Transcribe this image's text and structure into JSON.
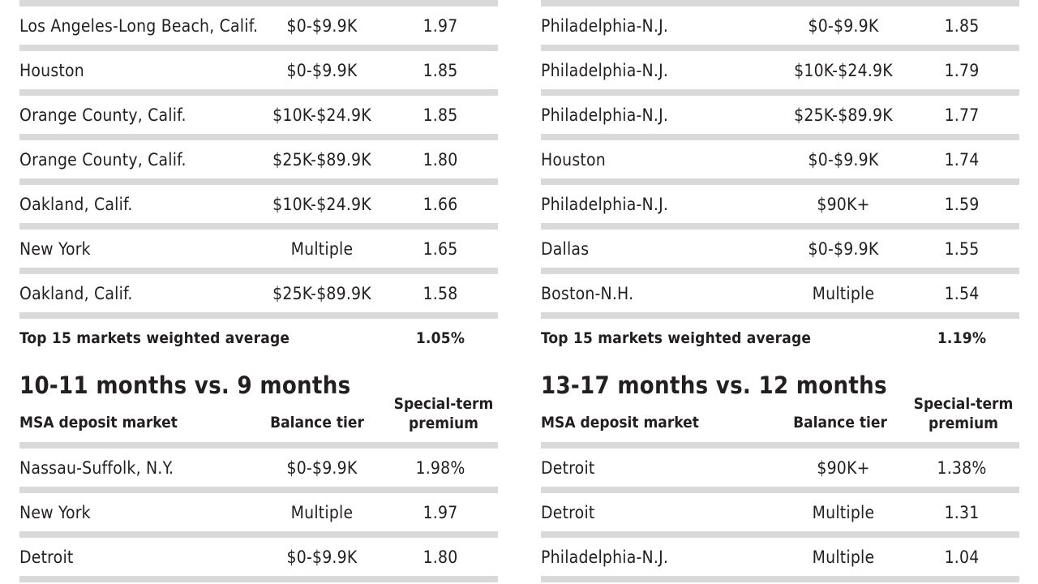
{
  "left": {
    "rows": [
      {
        "market": "Los Angeles-Long Beach, Calif.",
        "tier": "$0-$9.9K",
        "premium": "1.97"
      },
      {
        "market": "Houston",
        "tier": "$0-$9.9K",
        "premium": "1.85"
      },
      {
        "market": "Orange County, Calif.",
        "tier": "$10K-$24.9K",
        "premium": "1.85"
      },
      {
        "market": "Orange County, Calif.",
        "tier": "$25K-$89.9K",
        "premium": "1.80"
      },
      {
        "market": "Oakland, Calif.",
        "tier": "$10K-$24.9K",
        "premium": "1.66"
      },
      {
        "market": "New York",
        "tier": "Multiple",
        "premium": "1.65"
      },
      {
        "market": "Oakland, Calif.",
        "tier": "$25K-$89.9K",
        "premium": "1.58"
      }
    ],
    "average_label": "Top 15 markets weighted average",
    "average_value": "1.05%",
    "section_title": "10-11 months vs. 9 months",
    "headers": {
      "market": "MSA deposit market",
      "tier": "Balance tier",
      "premium_line1": "Special-term",
      "premium_line2": "premium"
    },
    "rows2": [
      {
        "market": "Nassau-Suffolk, N.Y.",
        "tier": "$0-$9.9K",
        "premium": "1.98%"
      },
      {
        "market": "New York",
        "tier": "Multiple",
        "premium": "1.97"
      },
      {
        "market": "Detroit",
        "tier": "$0-$9.9K",
        "premium": "1.80"
      }
    ]
  },
  "right": {
    "rows": [
      {
        "market": "Philadelphia-N.J.",
        "tier": "$0-$9.9K",
        "premium": "1.85"
      },
      {
        "market": "Philadelphia-N.J.",
        "tier": "$10K-$24.9K",
        "premium": "1.79"
      },
      {
        "market": "Philadelphia-N.J.",
        "tier": "$25K-$89.9K",
        "premium": "1.77"
      },
      {
        "market": "Houston",
        "tier": "$0-$9.9K",
        "premium": "1.74"
      },
      {
        "market": "Philadelphia-N.J.",
        "tier": "$90K+",
        "premium": "1.59"
      },
      {
        "market": "Dallas",
        "tier": "$0-$9.9K",
        "premium": "1.55"
      },
      {
        "market": "Boston-N.H.",
        "tier": "Multiple",
        "premium": "1.54"
      }
    ],
    "average_label": "Top 15 markets weighted average",
    "average_value": "1.19%",
    "section_title": "13-17 months vs. 12 months",
    "headers": {
      "market": "MSA deposit market",
      "tier": "Balance tier",
      "premium_line1": "Special-term",
      "premium_line2": "premium"
    },
    "rows2": [
      {
        "market": "Detroit",
        "tier": "$90K+",
        "premium": "1.38%"
      },
      {
        "market": "Detroit",
        "tier": "Multiple",
        "premium": "1.31"
      },
      {
        "market": "Philadelphia-N.J.",
        "tier": "Multiple",
        "premium": "1.04"
      }
    ]
  }
}
